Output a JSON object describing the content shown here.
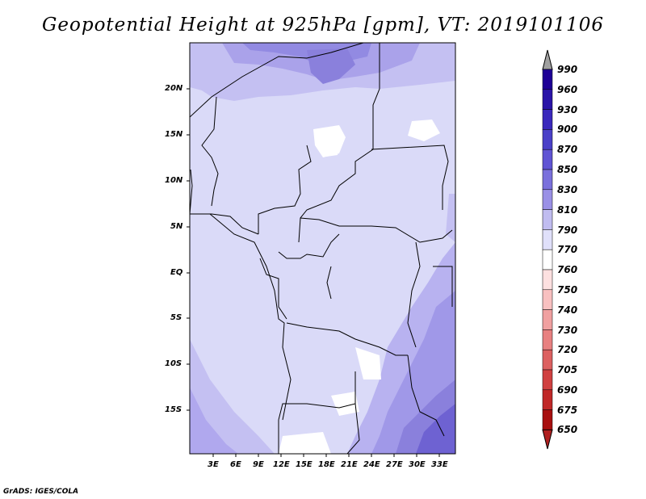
{
  "title": "Geopotential Height at 925hPa [gpm], VT: 2019101106",
  "credit": "GrADS: IGES/COLA",
  "map": {
    "lat_labels": [
      "20N",
      "15N",
      "10N",
      "5N",
      "EQ",
      "5S",
      "10S",
      "15S"
    ],
    "lon_labels": [
      "3E",
      "6E",
      "9E",
      "12E",
      "15E",
      "18E",
      "21E",
      "24E",
      "27E",
      "30E",
      "33E"
    ],
    "region": "Central Africa"
  },
  "colorbar": {
    "levels": [
      "990",
      "960",
      "930",
      "900",
      "870",
      "850",
      "830",
      "810",
      "790",
      "770",
      "760",
      "750",
      "740",
      "730",
      "720",
      "705",
      "690",
      "675",
      "650"
    ],
    "colors": [
      "#a0a0a0",
      "#1e0096",
      "#2a14a8",
      "#3a28bc",
      "#4a40c8",
      "#6054d4",
      "#7a70dc",
      "#9a90e6",
      "#c0bcf0",
      "#e0e0fa",
      "#ffffff",
      "#fde0e0",
      "#f8c0c0",
      "#f0a0a0",
      "#e88080",
      "#dc6060",
      "#d04040",
      "#c02828",
      "#a81010",
      "#b02020"
    ]
  }
}
